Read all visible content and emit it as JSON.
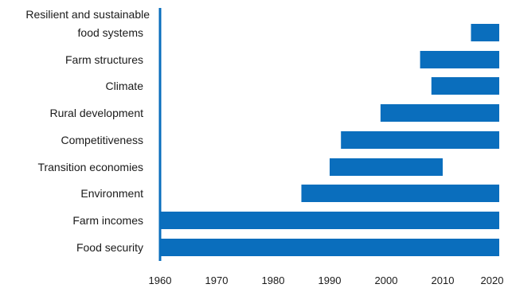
{
  "chart_data": {
    "type": "bar",
    "orientation": "horizontal",
    "title": "",
    "xlabel": "",
    "ylabel": "",
    "xlim": [
      1960,
      2020
    ],
    "x_ticks": [
      "1960",
      "1970",
      "1980",
      "1990",
      "2000",
      "2010",
      "2020"
    ],
    "categories": [
      [
        "Resilient and sustainable",
        "food systems"
      ],
      [
        "Farm structures"
      ],
      [
        "Climate"
      ],
      [
        "Rural development"
      ],
      [
        "Competitiveness"
      ],
      [
        "Transition economies"
      ],
      [
        "Environment"
      ],
      [
        "Farm incomes"
      ],
      [
        "Food security"
      ]
    ],
    "ranges": [
      [
        2015,
        2020
      ],
      [
        2006,
        2020
      ],
      [
        2008,
        2020
      ],
      [
        1999,
        2020
      ],
      [
        1992,
        2020
      ],
      [
        1990,
        2010
      ],
      [
        1985,
        2020
      ],
      [
        1960,
        2020
      ],
      [
        1960,
        2020
      ]
    ],
    "bar_color": "#0a6ebd",
    "axis_color": "#0a6ebd",
    "grid": false,
    "legend": "none"
  }
}
